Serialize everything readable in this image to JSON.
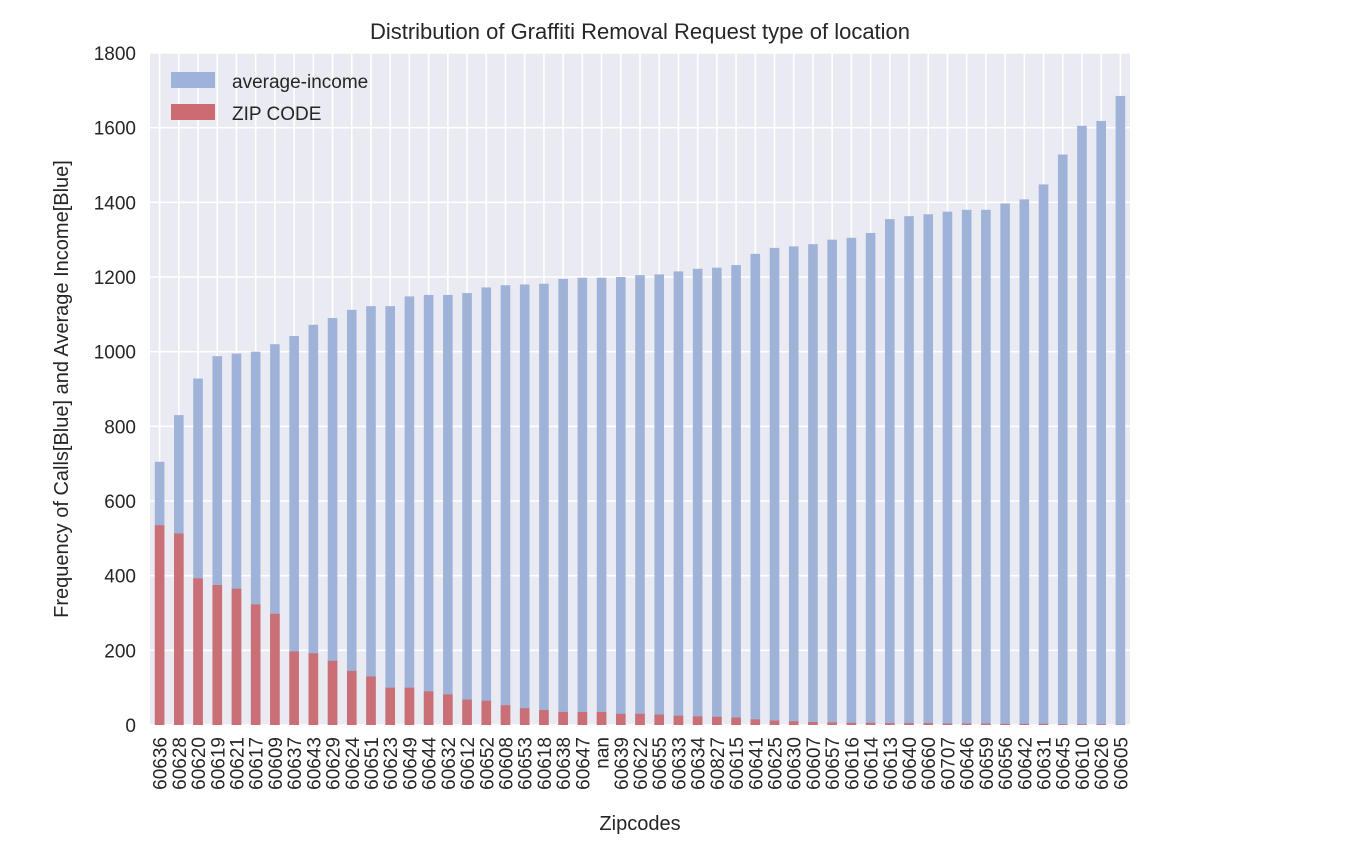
{
  "chart_data": {
    "type": "bar",
    "stacked": false,
    "overlaid": true,
    "title": "Distribution of Graffiti Removal Request type of location",
    "xlabel": "Zipcodes",
    "ylabel": "Frequency of Calls[Blue] and Average Income[Blue]",
    "ylim": [
      0,
      1800
    ],
    "yticks": [
      "0",
      "200",
      "400",
      "600",
      "800",
      "1000",
      "1200",
      "1400",
      "1600",
      "1800"
    ],
    "grid": true,
    "legend_position": "top-left",
    "categories": [
      "60636",
      "60628",
      "60620",
      "60619",
      "60621",
      "60617",
      "60609",
      "60637",
      "60643",
      "60629",
      "60624",
      "60651",
      "60623",
      "60649",
      "60644",
      "60632",
      "60612",
      "60652",
      "60608",
      "60653",
      "60618",
      "60638",
      "60647",
      "nan",
      "60639",
      "60622",
      "60655",
      "60633",
      "60634",
      "60827",
      "60615",
      "60641",
      "60625",
      "60630",
      "60607",
      "60657",
      "60616",
      "60614",
      "60613",
      "60640",
      "60660",
      "60707",
      "60646",
      "60659",
      "60656",
      "60642",
      "60631",
      "60645",
      "60610",
      "60626",
      "60605"
    ],
    "series": [
      {
        "name": "average-income",
        "color": "#9fb3d9",
        "values": [
          705,
          830,
          928,
          988,
          995,
          1000,
          1020,
          1042,
          1072,
          1090,
          1112,
          1122,
          1122,
          1148,
          1152,
          1152,
          1157,
          1172,
          1178,
          1180,
          1182,
          1195,
          1198,
          1198,
          1200,
          1205,
          1207,
          1215,
          1222,
          1225,
          1232,
          1262,
          1278,
          1282,
          1288,
          1300,
          1305,
          1318,
          1355,
          1363,
          1368,
          1375,
          1380,
          1380,
          1397,
          1408,
          1448,
          1528,
          1605,
          1618,
          1685
        ]
      },
      {
        "name": "ZIP CODE",
        "color": "#cc6c70",
        "values": [
          535,
          513,
          393,
          375,
          365,
          323,
          298,
          197,
          192,
          172,
          145,
          130,
          100,
          100,
          90,
          82,
          68,
          65,
          53,
          45,
          40,
          35,
          35,
          35,
          30,
          30,
          28,
          25,
          23,
          22,
          20,
          15,
          12,
          10,
          8,
          7,
          6,
          6,
          5,
          5,
          5,
          4,
          4,
          4,
          3,
          3,
          3,
          2,
          2,
          2,
          1
        ]
      }
    ]
  }
}
